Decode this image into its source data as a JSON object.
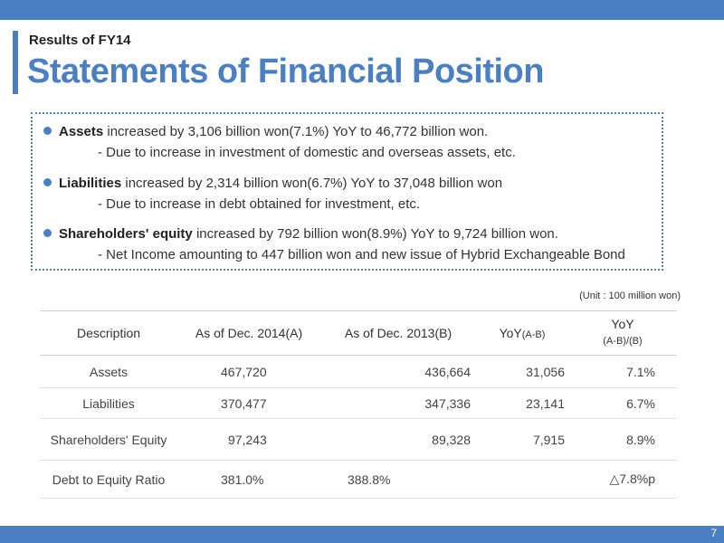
{
  "header": {
    "subtitle": "Results of FY14",
    "title": "Statements of Financial Position"
  },
  "summary": {
    "items": [
      {
        "bold": "Assets",
        "text": " increased by 3,106 billion won(7.1%) YoY to 46,772 billion won.",
        "detail": "- Due to increase in investment of domestic and overseas assets, etc."
      },
      {
        "bold": "Liabilities",
        "text": " increased by 2,314 billion won(6.7%) YoY to 37,048 billion won",
        "detail": "- Due to increase in debt obtained for investment, etc."
      },
      {
        "bold": "Shareholders' equity",
        "text": " increased by 792 billion won(8.9%) YoY to 9,724 billion won.",
        "detail": "- Net Income amounting to 447 billion won and new issue of Hybrid Exchangeable Bond"
      }
    ]
  },
  "table": {
    "unit": "(Unit : 100 million won)",
    "headers": {
      "description": "Description",
      "a": "As of Dec. 2014(A)",
      "b": "As of Dec. 2013(B)",
      "yoy_main": "YoY",
      "yoy_sub": "(A-B)",
      "yoy2_main": "YoY",
      "yoy2_sub": "(A-B)/(B)"
    },
    "rows": [
      {
        "label": "Assets",
        "a": "467,720",
        "b": "436,664",
        "diff": "31,056",
        "pct": "7.1%"
      },
      {
        "label": "Liabilities",
        "a": "370,477",
        "b": "347,336",
        "diff": "23,141",
        "pct": "6.7%"
      },
      {
        "label": "Shareholders' Equity",
        "a": "97,243",
        "b": "89,328",
        "diff": "7,915",
        "pct": "8.9%"
      },
      {
        "label": "Debt to Equity Ratio",
        "a": "381.0%",
        "b": "388.8%",
        "diff": "",
        "pct": "△7.8%p"
      }
    ]
  },
  "footer": {
    "page": "7"
  }
}
